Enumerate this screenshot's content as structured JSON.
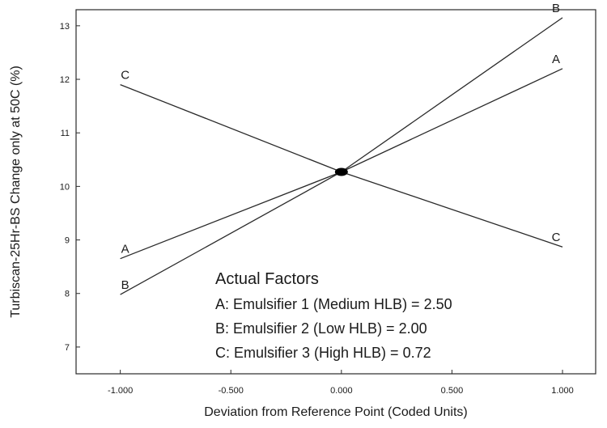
{
  "chart_data": {
    "type": "line",
    "title": "",
    "xlabel": "Deviation from Reference Point (Coded Units)",
    "ylabel": "Turbiscan-25Hr-BS Change only at 50C (%)",
    "xlim": [
      -1.2,
      1.15
    ],
    "ylim": [
      6.5,
      13.3
    ],
    "x_ticks": [
      -1.0,
      -0.5,
      0.0,
      0.5,
      1.0
    ],
    "x_tick_labels": [
      "-1.000",
      "-0.500",
      "0.000",
      "0.500",
      "1.000"
    ],
    "y_ticks": [
      7,
      8,
      9,
      10,
      11,
      12,
      13
    ],
    "y_tick_labels": [
      "7",
      "8",
      "9",
      "10",
      "11",
      "12",
      "13"
    ],
    "grid": false,
    "series": [
      {
        "name": "A",
        "x": [
          -1.0,
          0.0,
          1.0
        ],
        "y": [
          8.65,
          10.27,
          12.2
        ]
      },
      {
        "name": "B",
        "x": [
          -1.0,
          0.0,
          1.0
        ],
        "y": [
          7.98,
          10.27,
          13.15
        ]
      },
      {
        "name": "C",
        "x": [
          -1.0,
          0.0,
          1.0
        ],
        "y": [
          11.9,
          10.27,
          8.87
        ]
      }
    ],
    "reference_point": {
      "x": 0.0,
      "y": 10.27
    },
    "annotation": {
      "title": "Actual Factors",
      "lines": [
        "A: Emulsifier 1 (Medium HLB) = 2.50",
        "B: Emulsifier 2 (Low HLB) = 2.00",
        "C: Emulsifier 3 (High HLB) = 0.72"
      ]
    },
    "colors": {
      "line": "#2a2a2a",
      "point": "#000000",
      "frame": "#2a2a2a"
    }
  }
}
